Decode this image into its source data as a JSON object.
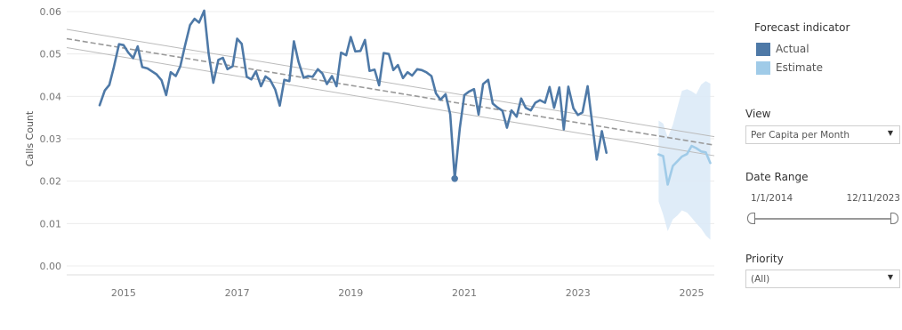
{
  "chart_data": {
    "type": "line",
    "title": "",
    "ylabel": "Calls Count",
    "xlabel": "",
    "ylim": [
      0,
      0.06
    ],
    "xlim": [
      2014.0,
      2025.4
    ],
    "y_ticks": [
      0.0,
      0.01,
      0.02,
      0.03,
      0.04,
      0.05,
      0.06
    ],
    "y_tick_labels": [
      "0.00",
      "0.01",
      "0.02",
      "0.03",
      "0.04",
      "0.05",
      "0.06"
    ],
    "x_ticks": [
      2015,
      2017,
      2019,
      2021,
      2023,
      2025
    ],
    "x_tick_labels": [
      "2015",
      "2017",
      "2019",
      "2021",
      "2023",
      "2025"
    ],
    "grid": "horizontal",
    "series": [
      {
        "name": "Actual",
        "color": "#4e79a7",
        "points": [
          [
            2014.58,
            0.0379
          ],
          [
            2014.67,
            0.0414
          ],
          [
            2014.75,
            0.0427
          ],
          [
            2014.83,
            0.0469
          ],
          [
            2014.92,
            0.0523
          ],
          [
            2015.0,
            0.0521
          ],
          [
            2015.08,
            0.0504
          ],
          [
            2015.17,
            0.049
          ],
          [
            2015.25,
            0.0518
          ],
          [
            2015.33,
            0.0469
          ],
          [
            2015.42,
            0.0466
          ],
          [
            2015.5,
            0.0459
          ],
          [
            2015.58,
            0.0452
          ],
          [
            2015.67,
            0.0438
          ],
          [
            2015.75,
            0.0403
          ],
          [
            2015.83,
            0.0457
          ],
          [
            2015.92,
            0.0448
          ],
          [
            2016.0,
            0.0471
          ],
          [
            2016.08,
            0.0518
          ],
          [
            2016.17,
            0.0568
          ],
          [
            2016.25,
            0.0583
          ],
          [
            2016.33,
            0.0574
          ],
          [
            2016.42,
            0.0602
          ],
          [
            2016.5,
            0.05
          ],
          [
            2016.58,
            0.0432
          ],
          [
            2016.67,
            0.0486
          ],
          [
            2016.75,
            0.0491
          ],
          [
            2016.83,
            0.0464
          ],
          [
            2016.92,
            0.0471
          ],
          [
            2017.0,
            0.0536
          ],
          [
            2017.08,
            0.0524
          ],
          [
            2017.17,
            0.0446
          ],
          [
            2017.25,
            0.044
          ],
          [
            2017.33,
            0.0459
          ],
          [
            2017.42,
            0.0424
          ],
          [
            2017.5,
            0.0447
          ],
          [
            2017.58,
            0.0439
          ],
          [
            2017.67,
            0.0416
          ],
          [
            2017.75,
            0.0378
          ],
          [
            2017.83,
            0.0439
          ],
          [
            2017.92,
            0.0436
          ],
          [
            2018.0,
            0.053
          ],
          [
            2018.08,
            0.0482
          ],
          [
            2018.17,
            0.0444
          ],
          [
            2018.25,
            0.0448
          ],
          [
            2018.33,
            0.0446
          ],
          [
            2018.42,
            0.0464
          ],
          [
            2018.5,
            0.0454
          ],
          [
            2018.58,
            0.0429
          ],
          [
            2018.67,
            0.0448
          ],
          [
            2018.75,
            0.0424
          ],
          [
            2018.83,
            0.0503
          ],
          [
            2018.92,
            0.0497
          ],
          [
            2019.0,
            0.054
          ],
          [
            2019.08,
            0.0506
          ],
          [
            2019.17,
            0.0507
          ],
          [
            2019.25,
            0.0533
          ],
          [
            2019.33,
            0.046
          ],
          [
            2019.42,
            0.0463
          ],
          [
            2019.5,
            0.0426
          ],
          [
            2019.58,
            0.0502
          ],
          [
            2019.67,
            0.05
          ],
          [
            2019.75,
            0.0462
          ],
          [
            2019.83,
            0.0474
          ],
          [
            2019.92,
            0.0443
          ],
          [
            2020.0,
            0.0457
          ],
          [
            2020.08,
            0.0449
          ],
          [
            2020.17,
            0.0464
          ],
          [
            2020.25,
            0.0462
          ],
          [
            2020.33,
            0.0457
          ],
          [
            2020.42,
            0.0448
          ],
          [
            2020.5,
            0.0407
          ],
          [
            2020.58,
            0.0392
          ],
          [
            2020.67,
            0.0405
          ],
          [
            2020.75,
            0.0358
          ],
          [
            2020.83,
            0.0206
          ],
          [
            2020.92,
            0.0325
          ],
          [
            2021.0,
            0.0403
          ],
          [
            2021.08,
            0.0411
          ],
          [
            2021.17,
            0.0417
          ],
          [
            2021.25,
            0.0357
          ],
          [
            2021.33,
            0.0429
          ],
          [
            2021.42,
            0.0439
          ],
          [
            2021.5,
            0.0383
          ],
          [
            2021.58,
            0.0374
          ],
          [
            2021.67,
            0.0366
          ],
          [
            2021.75,
            0.0326
          ],
          [
            2021.83,
            0.0367
          ],
          [
            2021.92,
            0.0352
          ],
          [
            2022.0,
            0.0395
          ],
          [
            2022.08,
            0.0373
          ],
          [
            2022.17,
            0.0367
          ],
          [
            2022.25,
            0.0385
          ],
          [
            2022.33,
            0.0391
          ],
          [
            2022.42,
            0.0385
          ],
          [
            2022.5,
            0.0422
          ],
          [
            2022.58,
            0.0373
          ],
          [
            2022.67,
            0.0421
          ],
          [
            2022.75,
            0.0322
          ],
          [
            2022.83,
            0.0423
          ],
          [
            2022.92,
            0.0372
          ],
          [
            2023.0,
            0.0356
          ],
          [
            2023.08,
            0.0362
          ],
          [
            2023.17,
            0.0424
          ],
          [
            2023.25,
            0.0337
          ],
          [
            2023.33,
            0.0251
          ],
          [
            2023.42,
            0.0318
          ],
          [
            2023.5,
            0.0267
          ]
        ]
      },
      {
        "name": "Estimate",
        "color": "#a0cbe8",
        "points": [
          [
            2024.42,
            0.0263
          ],
          [
            2024.5,
            0.0259
          ],
          [
            2024.58,
            0.0192
          ],
          [
            2024.67,
            0.0236
          ],
          [
            2024.75,
            0.0247
          ],
          [
            2024.83,
            0.0258
          ],
          [
            2024.92,
            0.0264
          ],
          [
            2025.0,
            0.0283
          ],
          [
            2025.08,
            0.0278
          ],
          [
            2025.17,
            0.027
          ],
          [
            2025.25,
            0.0268
          ],
          [
            2025.33,
            0.0243
          ]
        ],
        "band_upper": [
          0.0343,
          0.0336,
          0.0303,
          0.0333,
          0.0374,
          0.0413,
          0.0417,
          0.0412,
          0.0405,
          0.0428,
          0.0436,
          0.043
        ],
        "band_lower": [
          0.0152,
          0.0121,
          0.0082,
          0.011,
          0.0119,
          0.0131,
          0.0126,
          0.0114,
          0.0101,
          0.0088,
          0.0072,
          0.0062
        ]
      }
    ],
    "trend_lines": [
      {
        "role": "trend",
        "style": "dashed",
        "color": "#999999",
        "from": [
          2014.0,
          0.0536
        ],
        "to": [
          2025.4,
          0.0285
        ]
      },
      {
        "role": "upper bound",
        "style": "solid",
        "color": "#bbbbbb",
        "from": [
          2014.0,
          0.0558
        ],
        "to": [
          2025.4,
          0.0305
        ]
      },
      {
        "role": "lower bound",
        "style": "solid",
        "color": "#bbbbbb",
        "from": [
          2014.0,
          0.0515
        ],
        "to": [
          2025.4,
          0.026
        ]
      }
    ],
    "markers": [
      {
        "x": 2020.83,
        "y": 0.0206,
        "series": "Actual"
      }
    ]
  },
  "legend": {
    "title": "Forecast indicator",
    "items": [
      {
        "label": "Actual",
        "color": "#4e79a7"
      },
      {
        "label": "Estimate",
        "color": "#a0cbe8"
      }
    ]
  },
  "filters": {
    "view": {
      "title": "View",
      "value": "Per Capita per Month"
    },
    "date_range": {
      "title": "Date Range",
      "start": "1/1/2014",
      "end": "12/11/2023",
      "start_fraction": 0.0,
      "end_fraction": 1.0
    },
    "priority": {
      "title": "Priority",
      "value": "(All)"
    }
  }
}
